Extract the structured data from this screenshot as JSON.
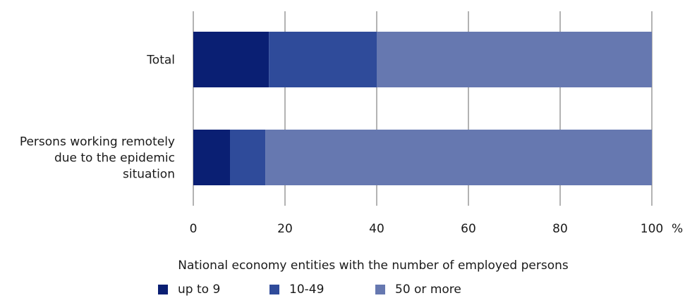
{
  "chart_data": {
    "type": "bar",
    "orientation": "horizontal",
    "stacked": true,
    "categories": [
      "Total",
      "Persons working remotely due to the epidemic situation"
    ],
    "category_lines": [
      [
        "Total"
      ],
      [
        "Persons working remotely",
        "due to the epidemic",
        "situation"
      ]
    ],
    "series": [
      {
        "name": "up to 9",
        "values": [
          16.5,
          8.0
        ],
        "color": "#0a1f73"
      },
      {
        "name": "10-49",
        "values": [
          23.5,
          7.7
        ],
        "color": "#2f4b9a"
      },
      {
        "name": "50 or more",
        "values": [
          60.0,
          84.3
        ],
        "color": "#6678b0"
      }
    ],
    "xlim": [
      0,
      100
    ],
    "xticks": [
      "0",
      "20",
      "40",
      "60",
      "80",
      "100"
    ],
    "xunit": "%",
    "grid": true,
    "legend_title": "National economy entities with the number of employed persons",
    "legend_position": "bottom"
  }
}
